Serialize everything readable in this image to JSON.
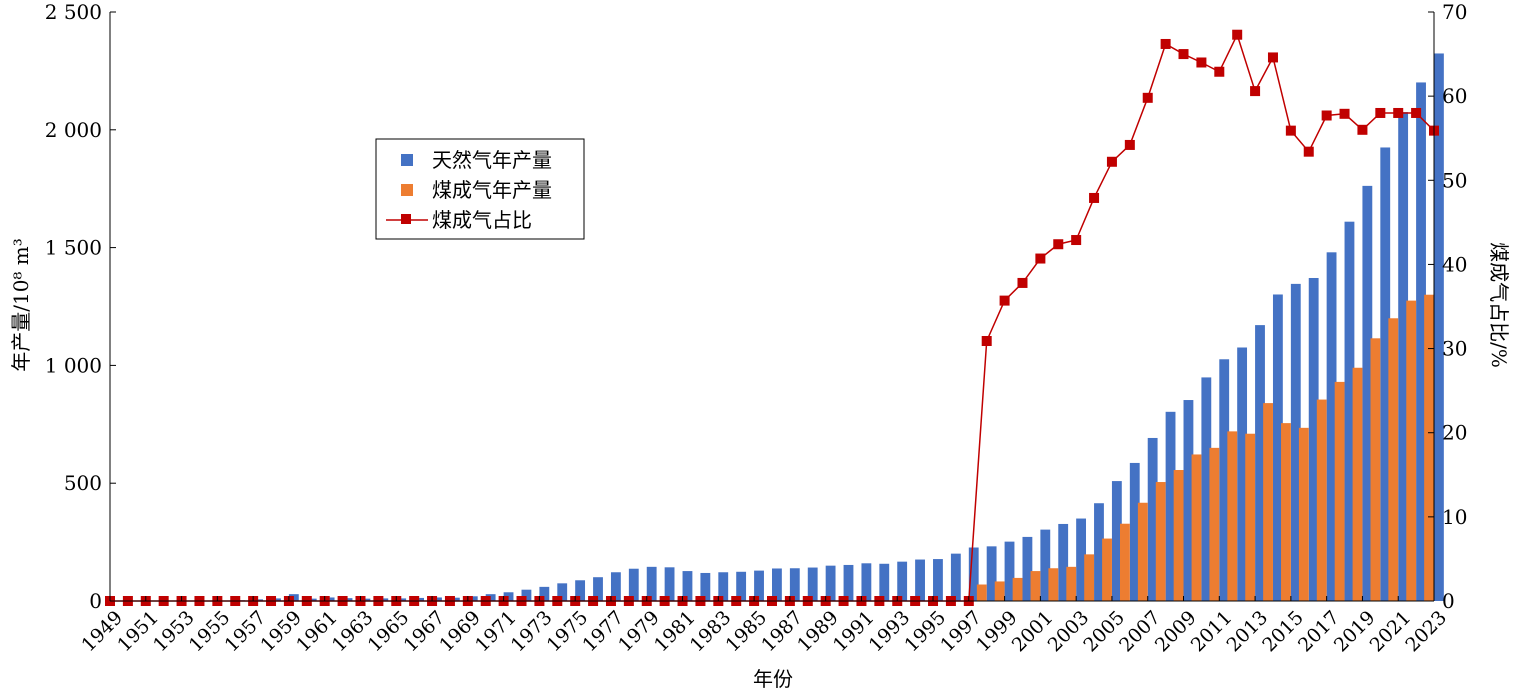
{
  "chart_data": {
    "type": "bar",
    "x": [
      1949,
      1950,
      1951,
      1952,
      1953,
      1954,
      1955,
      1956,
      1957,
      1958,
      1959,
      1960,
      1961,
      1962,
      1963,
      1964,
      1965,
      1966,
      1967,
      1968,
      1969,
      1970,
      1971,
      1972,
      1973,
      1974,
      1975,
      1976,
      1977,
      1978,
      1979,
      1980,
      1981,
      1982,
      1983,
      1984,
      1985,
      1986,
      1987,
      1988,
      1989,
      1990,
      1991,
      1992,
      1993,
      1994,
      1995,
      1996,
      1997,
      1998,
      1999,
      2000,
      2001,
      2002,
      2003,
      2004,
      2005,
      2006,
      2007,
      2008,
      2009,
      2010,
      2011,
      2012,
      2013,
      2014,
      2015,
      2016,
      2017,
      2018,
      2019,
      2020,
      2021,
      2022,
      2023
    ],
    "xtick_labels": [
      "1949",
      "1951",
      "1953",
      "1955",
      "1957",
      "1959",
      "1961",
      "1963",
      "1965",
      "1967",
      "1969",
      "1971",
      "1973",
      "1975",
      "1977",
      "1979",
      "1981",
      "1983",
      "1985",
      "1987",
      "1989",
      "1991",
      "1993",
      "1995",
      "1997",
      "1999",
      "2001",
      "2003",
      "2005",
      "2007",
      "2009",
      "2011",
      "2013",
      "2015",
      "2017",
      "2019",
      "2021",
      "2023"
    ],
    "series": [
      {
        "name": "天然气年产量",
        "axis": "left",
        "color": "#4472c4",
        "values": [
          0.1,
          0.1,
          0.3,
          0.8,
          1,
          1,
          2,
          3,
          7,
          11,
          29,
          10,
          15,
          12,
          10,
          11,
          11,
          13,
          15,
          14,
          20,
          29,
          37,
          48,
          60,
          75,
          88,
          101,
          122,
          137,
          145,
          143,
          127,
          119,
          122,
          124,
          129,
          138,
          139,
          142,
          150,
          153,
          160,
          158,
          167,
          176,
          178,
          201,
          227,
          232,
          252,
          272,
          303,
          327,
          350,
          415,
          509,
          586,
          692,
          803,
          853,
          949,
          1026,
          1076,
          1171,
          1301,
          1346,
          1371,
          1480,
          1610,
          1762,
          1925,
          2075,
          2201,
          2324
        ]
      },
      {
        "name": "煤成气年产量",
        "axis": "left",
        "color": "#ed7d31",
        "values": [
          0,
          0,
          0,
          0,
          0,
          0,
          0,
          0,
          0,
          0,
          0,
          0,
          0,
          0,
          0,
          0,
          0,
          0,
          0,
          0,
          0,
          0,
          0,
          0,
          0,
          0,
          0,
          0,
          0,
          0,
          0,
          0,
          0,
          0,
          0,
          0,
          0,
          0,
          0,
          0,
          0,
          0,
          0,
          0,
          0,
          0,
          0,
          0,
          0,
          70,
          83,
          98,
          127,
          139,
          145,
          198,
          265,
          328,
          417,
          505,
          556,
          622,
          650,
          720,
          710,
          840,
          755,
          735,
          855,
          930,
          990,
          1115,
          1200,
          1275,
          1300
        ]
      },
      {
        "name": "煤成气占比",
        "type": "line",
        "axis": "right",
        "color": "#c00000",
        "values": [
          0,
          0,
          0,
          0,
          0,
          0,
          0,
          0,
          0,
          0,
          0,
          0,
          0,
          0,
          0,
          0,
          0,
          0,
          0,
          0,
          0,
          0,
          0,
          0,
          0,
          0,
          0,
          0,
          0,
          0,
          0,
          0,
          0,
          0,
          0,
          0,
          0,
          0,
          0,
          0,
          0,
          0,
          0,
          0,
          0,
          0,
          0,
          0,
          0,
          30.9,
          35.7,
          37.8,
          40.7,
          42.4,
          42.9,
          47.9,
          52.2,
          54.2,
          59.8,
          66.2,
          65,
          64,
          62.9,
          67.3,
          60.6,
          64.6,
          55.9,
          53.4,
          57.7,
          57.9,
          56,
          58,
          58,
          58,
          55.9
        ]
      }
    ],
    "ylabel": "年产量/10⁸ m³",
    "y2label": "煤成气占比/%",
    "xlabel": "年份",
    "ylim": [
      0,
      2500
    ],
    "y2lim": [
      0,
      70
    ],
    "yticks": [
      "0",
      "500",
      "1 000",
      "1 500",
      "2 000",
      "2 500"
    ],
    "y2ticks": [
      "0",
      "10",
      "20",
      "30",
      "40",
      "50",
      "60",
      "70"
    ],
    "legend_position": "upper-left-center",
    "grid": false
  }
}
